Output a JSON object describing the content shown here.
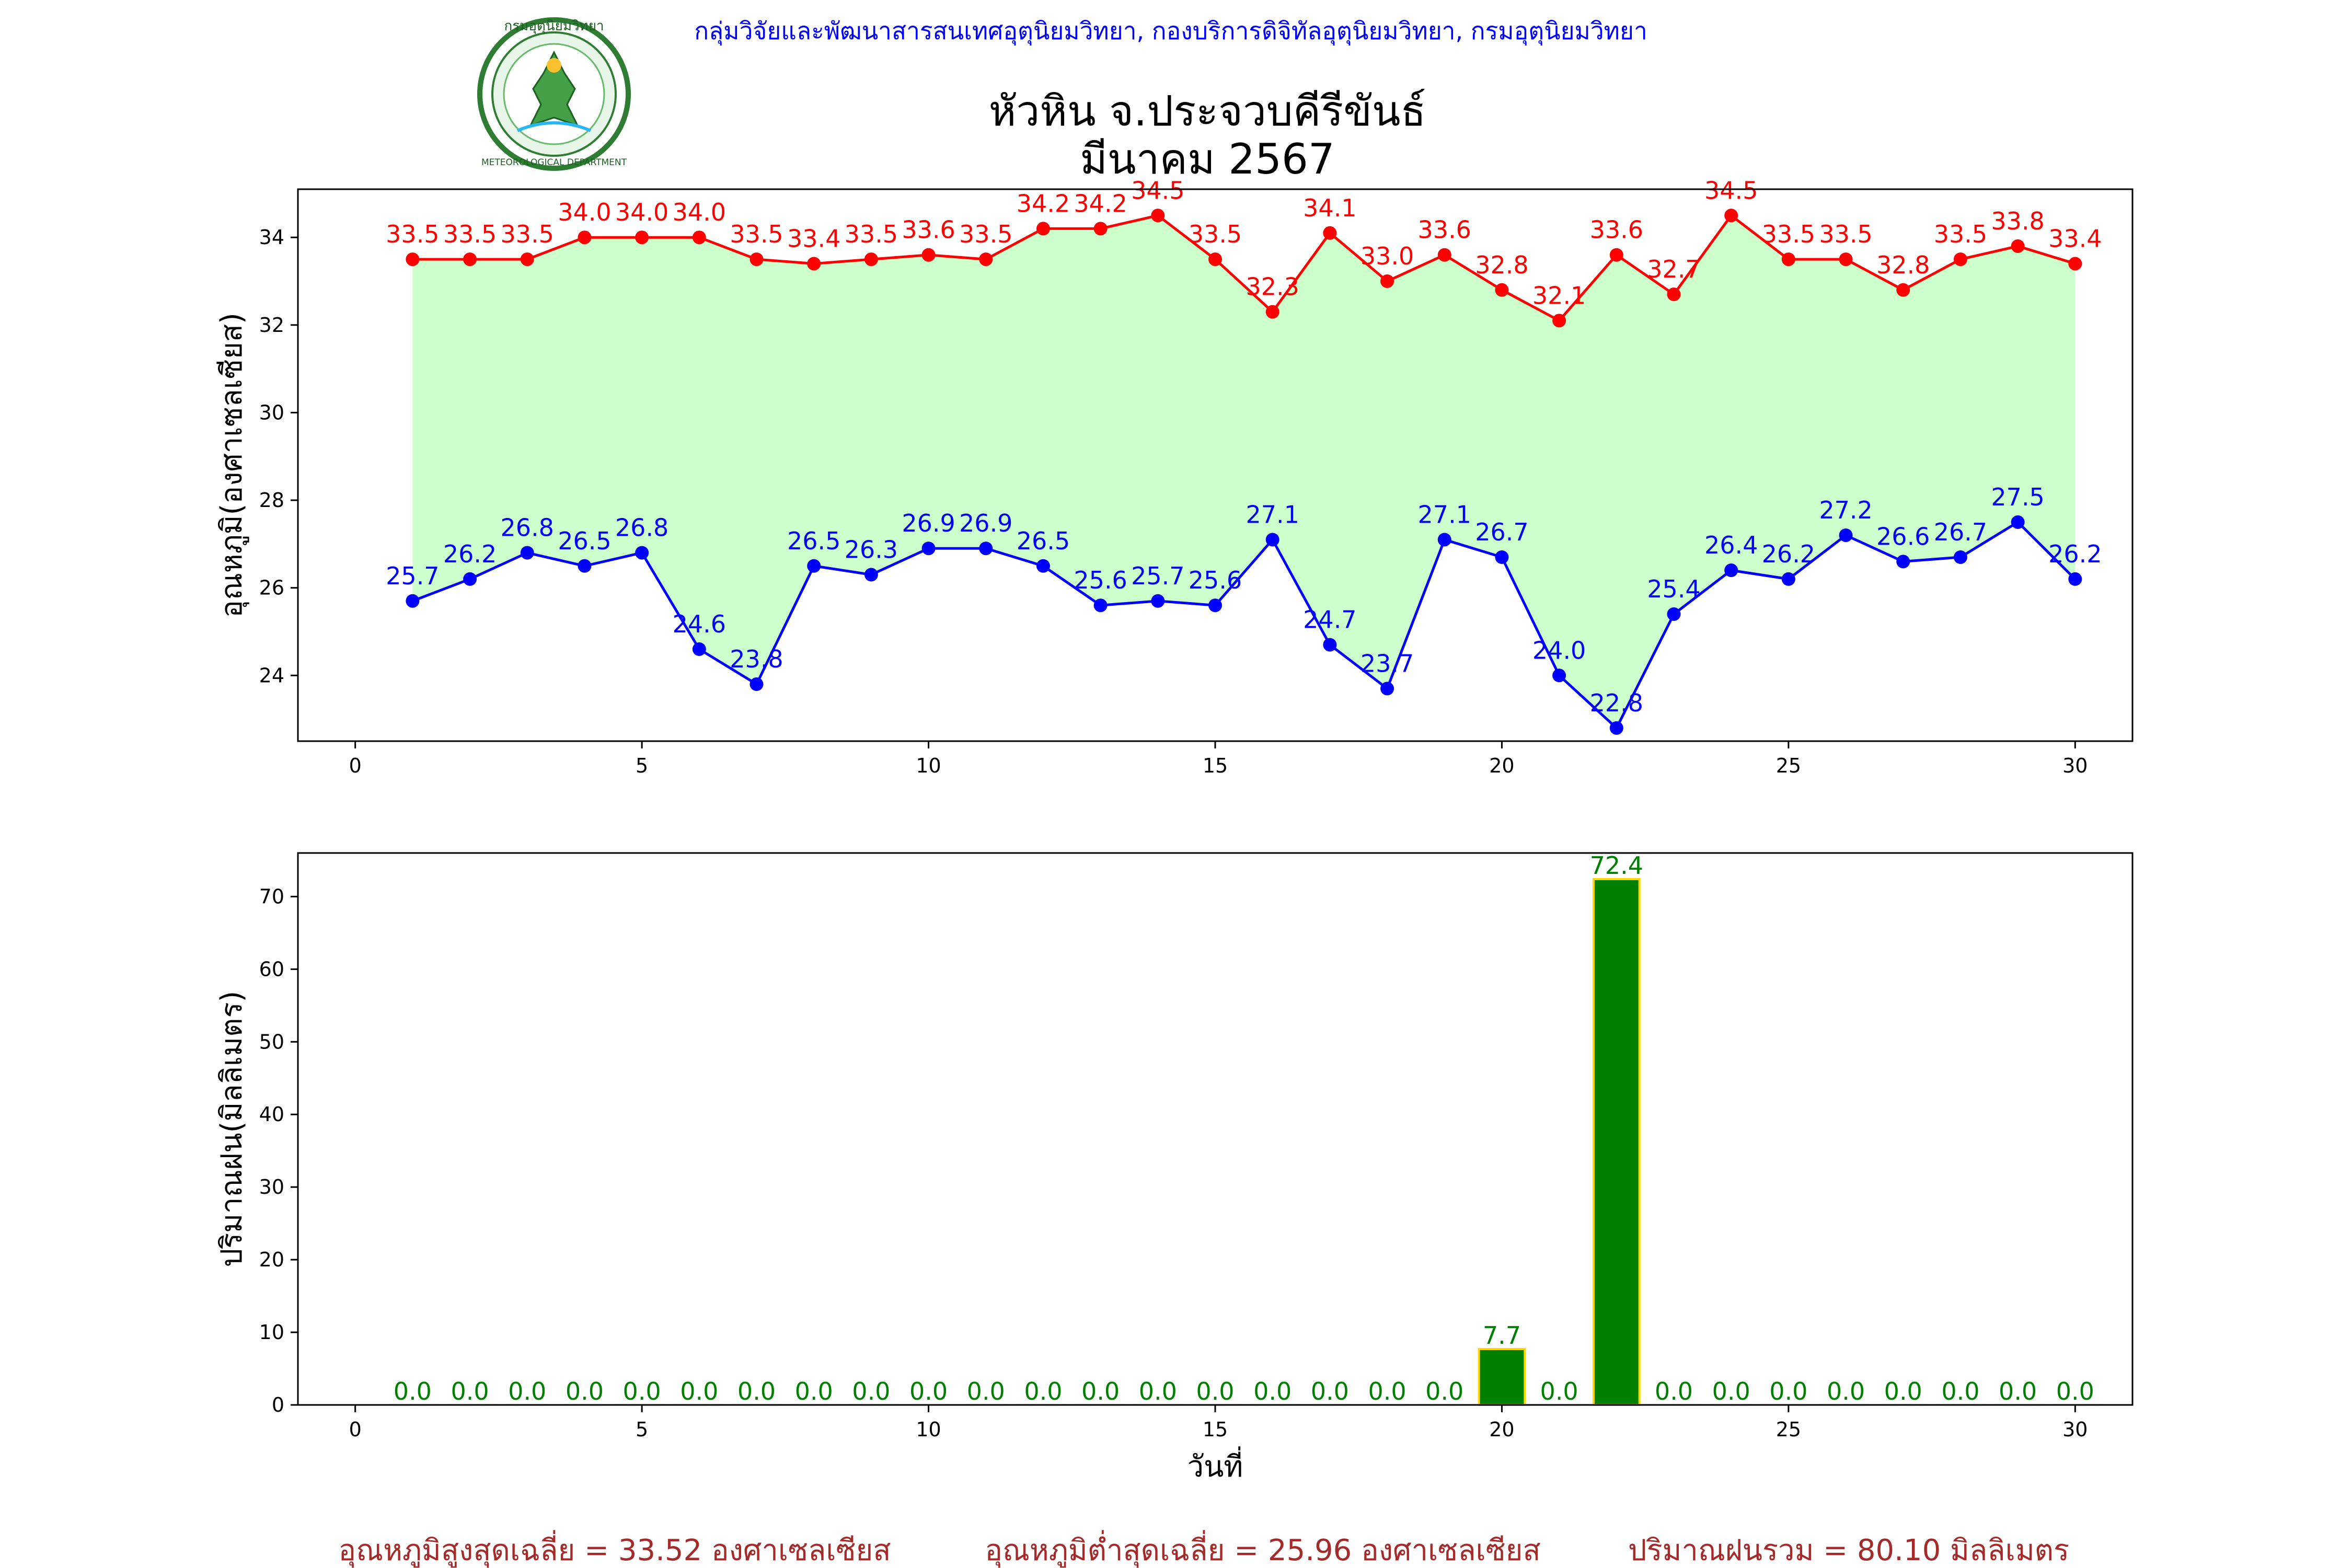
{
  "header": {
    "agency": "กลุ่มวิจัยและพัฒนาสารสนเทศอุตุนิยมวิทยา, กองบริการดิจิทัลอุตุนิยมวิทยา, กรมอุตุนิยมวิทยา",
    "logo_text_top": "กรมอุตุนิยมวิทยา",
    "logo_text_bottom": "METEOROLOGICAL DEPARTMENT"
  },
  "title": {
    "line1": "หัวหิน จ.ประจวบคีรีขันธ์",
    "line2": "มีนาคม 2567"
  },
  "colors": {
    "max": "#ff0000",
    "min": "#0000ff",
    "fill": "#ccffcc",
    "bar": "#008000",
    "bar_edge": "#ffd700",
    "summary": "#a52a2a"
  },
  "chart_data": [
    {
      "type": "line",
      "ylabel": "อุณหภูมิ(องศาเซลเซียส)",
      "xlabel": "",
      "xlim": [
        -1,
        31
      ],
      "ylim": [
        22.5,
        35.1
      ],
      "xticks": [
        0,
        5,
        10,
        15,
        20,
        25,
        30
      ],
      "yticks": [
        24,
        26,
        28,
        30,
        32,
        34
      ],
      "x": [
        1,
        2,
        3,
        4,
        5,
        6,
        7,
        8,
        9,
        10,
        11,
        12,
        13,
        14,
        15,
        16,
        17,
        18,
        19,
        20,
        21,
        22,
        23,
        24,
        25,
        26,
        27,
        28,
        29,
        30
      ],
      "fill_between": true,
      "series": [
        {
          "role": "max",
          "values": [
            33.5,
            33.5,
            33.5,
            34.0,
            34.0,
            34.0,
            33.5,
            33.4,
            33.5,
            33.6,
            33.5,
            34.2,
            34.2,
            34.5,
            33.5,
            32.3,
            34.1,
            33.0,
            33.6,
            32.8,
            32.1,
            33.6,
            32.7,
            34.5,
            33.5,
            33.5,
            32.8,
            33.5,
            33.8,
            33.4
          ]
        },
        {
          "role": "min",
          "values": [
            25.7,
            26.2,
            26.8,
            26.5,
            26.8,
            24.6,
            23.8,
            26.5,
            26.3,
            26.9,
            26.9,
            26.5,
            25.6,
            25.7,
            25.6,
            27.1,
            24.7,
            23.7,
            27.1,
            26.7,
            24.0,
            22.8,
            25.4,
            26.4,
            26.2,
            27.2,
            26.6,
            26.7,
            27.5,
            26.2
          ]
        }
      ]
    },
    {
      "type": "bar",
      "ylabel": "ปริมาณฝน(มิลลิเมตร)",
      "xlabel": "วันที่",
      "xlim": [
        -1,
        31
      ],
      "ylim": [
        0,
        76
      ],
      "xticks": [
        0,
        5,
        10,
        15,
        20,
        25,
        30
      ],
      "yticks": [
        0,
        10,
        20,
        30,
        40,
        50,
        60,
        70
      ],
      "x": [
        1,
        2,
        3,
        4,
        5,
        6,
        7,
        8,
        9,
        10,
        11,
        12,
        13,
        14,
        15,
        16,
        17,
        18,
        19,
        20,
        21,
        22,
        23,
        24,
        25,
        26,
        27,
        28,
        29,
        30
      ],
      "values": [
        0.0,
        0.0,
        0.0,
        0.0,
        0.0,
        0.0,
        0.0,
        0.0,
        0.0,
        0.0,
        0.0,
        0.0,
        0.0,
        0.0,
        0.0,
        0.0,
        0.0,
        0.0,
        0.0,
        7.7,
        0.0,
        72.4,
        0.0,
        0.0,
        0.0,
        0.0,
        0.0,
        0.0,
        0.0,
        0.0
      ]
    }
  ],
  "summary": {
    "avg_max": "อุณหภูมิสูงสุดเฉลี่ย = 33.52 องศาเซลเซียส",
    "avg_min": "อุณหภูมิต่ำสุดเฉลี่ย = 25.96 องศาเซลเซียส",
    "total_rain": "ปริมาณฝนรวม = 80.10 มิลลิเมตร"
  }
}
